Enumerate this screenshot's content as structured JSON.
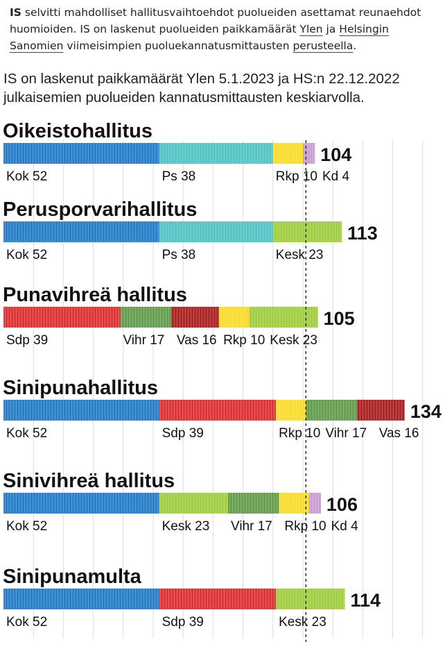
{
  "intro": {
    "bold": "IS",
    "part1": " selvitti mahdolliset hallitusvaihtoehdot puolueiden asettamat reunaehdot huomioiden. IS on laskenut puolueiden paikkamäärät ",
    "link1": "Ylen",
    "part2": " ja ",
    "link2": "Helsingin Sanomien",
    "part3": " viimeisimpien puoluekannatusmittausten ",
    "link3": "perusteella",
    "part4": "."
  },
  "subtitle": "IS on laskenut paikkamäärät Ylen 5.1.2023 ja HS:n 22.12.2022 julkaisemien puolueiden kannatusmittausten keskiarvolla.",
  "colors": {
    "Kok": "#2e7fc4",
    "Ps": "#5cc3c5",
    "Rkp": "#f7dc3a",
    "Kd": "#c9a2d2",
    "Kesk": "#a3cd4a",
    "Sdp": "#d73a3a",
    "Vihr": "#6a9e55",
    "Vas": "#a82a2a",
    "majority_line": "#333333"
  },
  "chart_data": {
    "type": "bar",
    "orientation": "horizontal-stacked",
    "unit": "seats",
    "majority_line": 101,
    "series_order": "coalitions",
    "coalitions": [
      {
        "title": "Oikeistohallitus",
        "total": "104",
        "parties": [
          {
            "label": "Kok 52",
            "party": "Kok",
            "seats": 52
          },
          {
            "label": "Ps 38",
            "party": "Ps",
            "seats": 38
          },
          {
            "label": "Rkp 10",
            "party": "Rkp",
            "seats": 10
          },
          {
            "label": "Kd 4",
            "party": "Kd",
            "seats": 4
          }
        ]
      },
      {
        "title": "Perusporvarihallitus",
        "total": "113",
        "parties": [
          {
            "label": "Kok 52",
            "party": "Kok",
            "seats": 52
          },
          {
            "label": "Ps 38",
            "party": "Ps",
            "seats": 38
          },
          {
            "label": "Kesk 23",
            "party": "Kesk",
            "seats": 23
          }
        ]
      },
      {
        "title": "Punavihreä hallitus",
        "total": "105",
        "parties": [
          {
            "label": "Sdp 39",
            "party": "Sdp",
            "seats": 39
          },
          {
            "label": "Vihr 17",
            "party": "Vihr",
            "seats": 17
          },
          {
            "label": "Vas 16",
            "party": "Vas",
            "seats": 16
          },
          {
            "label": "Rkp 10",
            "party": "Rkp",
            "seats": 10
          },
          {
            "label": "Kesk 23",
            "party": "Kesk",
            "seats": 23
          }
        ]
      },
      {
        "title": "Sinipunahallitus",
        "total": "134",
        "parties": [
          {
            "label": "Kok 52",
            "party": "Kok",
            "seats": 52
          },
          {
            "label": "Sdp 39",
            "party": "Sdp",
            "seats": 39
          },
          {
            "label": "Rkp 10",
            "party": "Rkp",
            "seats": 10
          },
          {
            "label": "Vihr 17",
            "party": "Vihr",
            "seats": 17
          },
          {
            "label": "Vas 16",
            "party": "Vas",
            "seats": 16
          }
        ]
      },
      {
        "title": "Sinivihreä hallitus",
        "total": "106",
        "parties": [
          {
            "label": "Kok 52",
            "party": "Kok",
            "seats": 52
          },
          {
            "label": "Kesk 23",
            "party": "Kesk",
            "seats": 23
          },
          {
            "label": "Vihr 17",
            "party": "Vihr",
            "seats": 17
          },
          {
            "label": "Rkp 10",
            "party": "Rkp",
            "seats": 10
          },
          {
            "label": "Kd 4",
            "party": "Kd",
            "seats": 4
          }
        ]
      },
      {
        "title": "Sinipunamulta",
        "total": "114",
        "parties": [
          {
            "label": "Kok 52",
            "party": "Kok",
            "seats": 52
          },
          {
            "label": "Sdp 39",
            "party": "Sdp",
            "seats": 39
          },
          {
            "label": "Kesk 23",
            "party": "Kesk",
            "seats": 23
          }
        ]
      }
    ]
  }
}
